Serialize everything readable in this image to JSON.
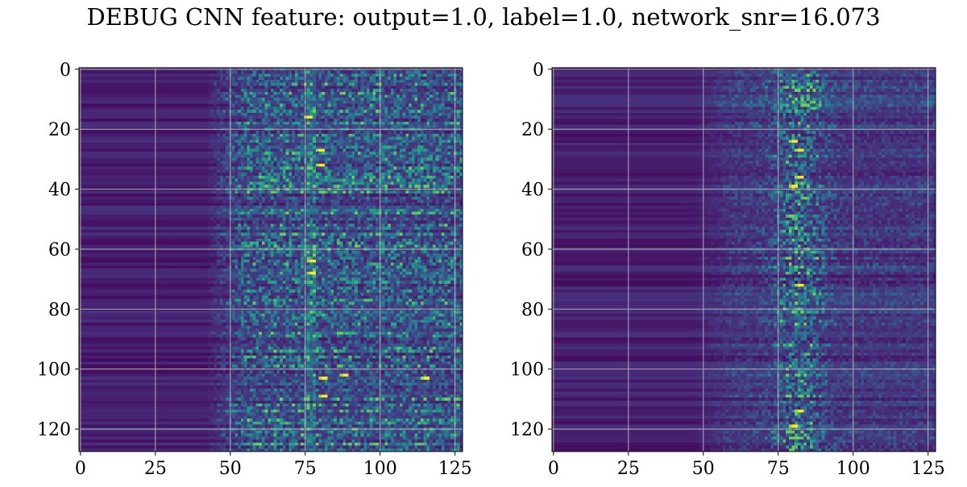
{
  "figure": {
    "title": "DEBUG CNN feature: output=1.0, label=1.0, network_snr=16.073"
  },
  "chart_data": [
    {
      "type": "heatmap",
      "title": "",
      "xlabel": "",
      "ylabel": "",
      "xlim": [
        0,
        127
      ],
      "ylim": [
        127,
        0
      ],
      "xticks": [
        0,
        25,
        50,
        75,
        100,
        125
      ],
      "yticks": [
        0,
        20,
        40,
        60,
        80,
        100,
        120
      ],
      "grid": true,
      "colormap": "viridis",
      "grid_size": [
        128,
        128
      ],
      "description_of_values": "low uniform values for x<50, noisy speckle for x>50 with a bright ridge near x~77",
      "ridge_x": 77,
      "hotspots": [
        {
          "x": 76,
          "y": 16
        },
        {
          "x": 80,
          "y": 27
        },
        {
          "x": 80,
          "y": 32
        },
        {
          "x": 77,
          "y": 64
        },
        {
          "x": 77,
          "y": 68
        },
        {
          "x": 81,
          "y": 103
        },
        {
          "x": 81,
          "y": 109
        },
        {
          "x": 88,
          "y": 102
        },
        {
          "x": 115,
          "y": 103
        }
      ]
    },
    {
      "type": "heatmap",
      "title": "",
      "xlabel": "",
      "ylabel": "",
      "xlim": [
        0,
        127
      ],
      "ylim": [
        127,
        0
      ],
      "xticks": [
        0,
        25,
        50,
        75,
        100,
        125
      ],
      "yticks": [
        0,
        20,
        40,
        60,
        80,
        100,
        120
      ],
      "grid": true,
      "colormap": "viridis",
      "grid_size": [
        128,
        128
      ],
      "description_of_values": "low uniform values for x<55, smoother blobs centered near x~82",
      "ridge_x": 82,
      "hotspots": [
        {
          "x": 80,
          "y": 24
        },
        {
          "x": 82,
          "y": 27
        },
        {
          "x": 82,
          "y": 36
        },
        {
          "x": 80,
          "y": 39
        },
        {
          "x": 82,
          "y": 72
        },
        {
          "x": 82,
          "y": 114
        },
        {
          "x": 80,
          "y": 119
        }
      ]
    }
  ],
  "colors": {
    "axis": "#000000",
    "grid": "#b0b0b0",
    "background": "#ffffff"
  }
}
